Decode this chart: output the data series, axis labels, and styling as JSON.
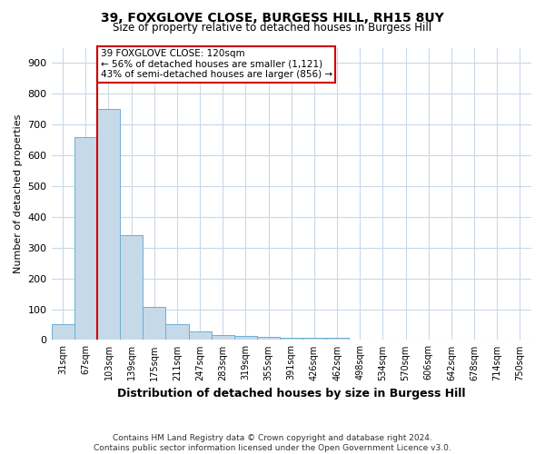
{
  "title1": "39, FOXGLOVE CLOSE, BURGESS HILL, RH15 8UY",
  "title2": "Size of property relative to detached houses in Burgess Hill",
  "xlabel": "Distribution of detached houses by size in Burgess Hill",
  "ylabel": "Number of detached properties",
  "bin_labels": [
    "31sqm",
    "67sqm",
    "103sqm",
    "139sqm",
    "175sqm",
    "211sqm",
    "247sqm",
    "283sqm",
    "319sqm",
    "355sqm",
    "391sqm",
    "426sqm",
    "462sqm",
    "498sqm",
    "534sqm",
    "570sqm",
    "606sqm",
    "642sqm",
    "678sqm",
    "714sqm",
    "750sqm"
  ],
  "bar_heights": [
    50,
    660,
    750,
    340,
    107,
    52,
    27,
    15,
    12,
    10,
    8,
    8,
    8,
    0,
    0,
    0,
    0,
    0,
    0,
    0,
    0
  ],
  "bar_color": "#c6d9e8",
  "bar_edge_color": "#6aafd4",
  "red_line_index": 2,
  "red_line_color": "#cc0000",
  "annotation_text": "39 FOXGLOVE CLOSE: 120sqm\n← 56% of detached houses are smaller (1,121)\n43% of semi-detached houses are larger (856) →",
  "annotation_box_color": "#ffffff",
  "annotation_box_edge": "#cc0000",
  "ylim": [
    0,
    950
  ],
  "yticks": [
    0,
    100,
    200,
    300,
    400,
    500,
    600,
    700,
    800,
    900
  ],
  "footer1": "Contains HM Land Registry data © Crown copyright and database right 2024.",
  "footer2": "Contains public sector information licensed under the Open Government Licence v3.0.",
  "bg_color": "#ffffff",
  "grid_color": "#c8d8e8"
}
